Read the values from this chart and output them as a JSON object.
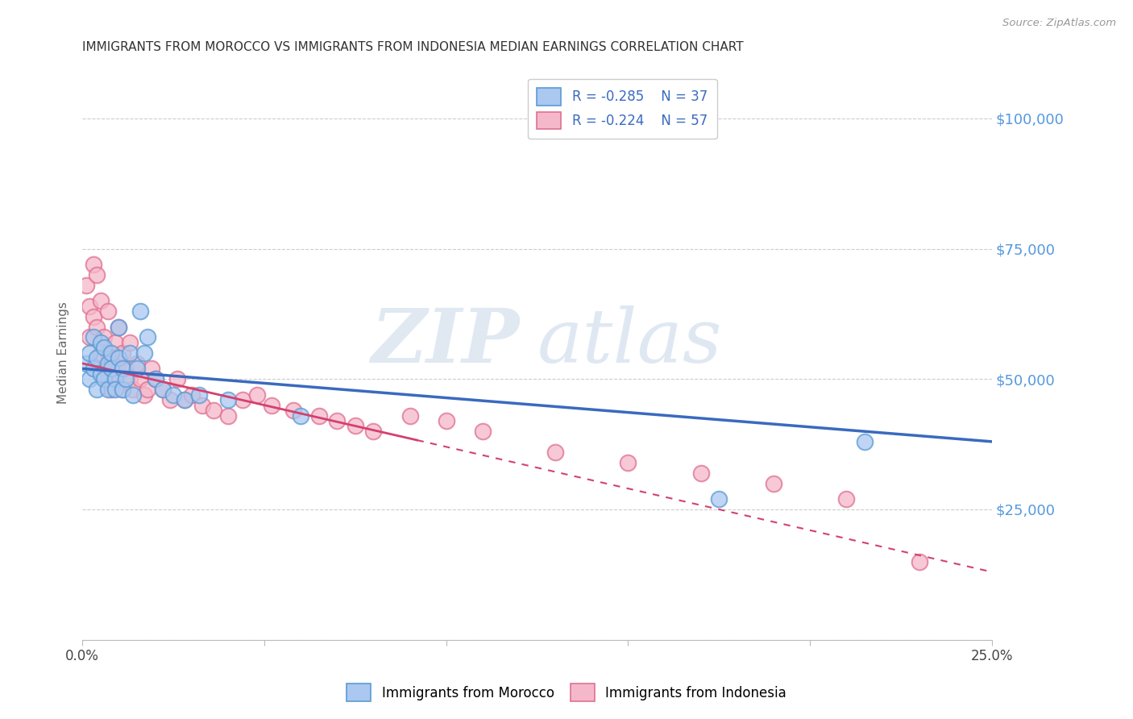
{
  "title": "IMMIGRANTS FROM MOROCCO VS IMMIGRANTS FROM INDONESIA MEDIAN EARNINGS CORRELATION CHART",
  "source": "Source: ZipAtlas.com",
  "ylabel": "Median Earnings",
  "xlim": [
    0.0,
    0.25
  ],
  "ylim": [
    0,
    110000
  ],
  "yticks": [
    0,
    25000,
    50000,
    75000,
    100000
  ],
  "ytick_labels": [
    "",
    "$25,000",
    "$50,000",
    "$75,000",
    "$100,000"
  ],
  "xticks": [
    0.0,
    0.05,
    0.1,
    0.15,
    0.2,
    0.25
  ],
  "xtick_labels": [
    "0.0%",
    "",
    "",
    "",
    "",
    "25.0%"
  ],
  "morocco_color": "#aac8f0",
  "indonesia_color": "#f5b8ca",
  "morocco_edge_color": "#5b9bd5",
  "indonesia_edge_color": "#e07090",
  "morocco_line_color": "#3a6abf",
  "indonesia_line_color": "#d44070",
  "legend_r_morocco": "R = -0.285",
  "legend_n_morocco": "N = 37",
  "legend_r_indonesia": "R = -0.224",
  "legend_n_indonesia": "N = 57",
  "watermark_zip": "ZIP",
  "watermark_atlas": "atlas",
  "background_color": "#ffffff",
  "grid_color": "#cccccc",
  "title_color": "#333333",
  "axis_label_color": "#666666",
  "right_tick_color": "#5599dd",
  "morocco_x": [
    0.001,
    0.002,
    0.002,
    0.003,
    0.003,
    0.004,
    0.004,
    0.005,
    0.005,
    0.006,
    0.006,
    0.007,
    0.007,
    0.008,
    0.008,
    0.009,
    0.009,
    0.01,
    0.01,
    0.011,
    0.011,
    0.012,
    0.013,
    0.014,
    0.015,
    0.016,
    0.017,
    0.018,
    0.02,
    0.022,
    0.025,
    0.028,
    0.032,
    0.04,
    0.06,
    0.175,
    0.215
  ],
  "morocco_y": [
    53000,
    55000,
    50000,
    58000,
    52000,
    54000,
    48000,
    57000,
    51000,
    56000,
    50000,
    53000,
    48000,
    55000,
    52000,
    50000,
    48000,
    60000,
    54000,
    52000,
    48000,
    50000,
    55000,
    47000,
    52000,
    63000,
    55000,
    58000,
    50000,
    48000,
    47000,
    46000,
    47000,
    46000,
    43000,
    27000,
    38000
  ],
  "indonesia_x": [
    0.001,
    0.002,
    0.002,
    0.003,
    0.003,
    0.004,
    0.004,
    0.005,
    0.005,
    0.006,
    0.006,
    0.007,
    0.007,
    0.007,
    0.008,
    0.008,
    0.009,
    0.009,
    0.01,
    0.01,
    0.011,
    0.011,
    0.012,
    0.013,
    0.013,
    0.014,
    0.015,
    0.016,
    0.017,
    0.018,
    0.019,
    0.02,
    0.022,
    0.024,
    0.026,
    0.028,
    0.03,
    0.033,
    0.036,
    0.04,
    0.044,
    0.048,
    0.052,
    0.058,
    0.065,
    0.07,
    0.075,
    0.08,
    0.09,
    0.1,
    0.11,
    0.13,
    0.15,
    0.17,
    0.19,
    0.21,
    0.23
  ],
  "indonesia_y": [
    68000,
    64000,
    58000,
    72000,
    62000,
    70000,
    60000,
    65000,
    55000,
    58000,
    52000,
    55000,
    63000,
    50000,
    54000,
    48000,
    57000,
    51000,
    53000,
    60000,
    48000,
    55000,
    52000,
    50000,
    57000,
    48000,
    53000,
    50000,
    47000,
    48000,
    52000,
    50000,
    48000,
    46000,
    50000,
    46000,
    47000,
    45000,
    44000,
    43000,
    46000,
    47000,
    45000,
    44000,
    43000,
    42000,
    41000,
    40000,
    43000,
    42000,
    40000,
    36000,
    34000,
    32000,
    30000,
    27000,
    15000
  ],
  "indonesia_highx": 0.092,
  "morocco_line_intercept": 52000,
  "morocco_line_slope": -56000,
  "indonesia_line_intercept": 53000,
  "indonesia_line_slope": -160000
}
